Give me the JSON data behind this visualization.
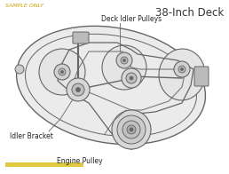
{
  "title": "38-Inch Deck",
  "watermark": "SAMPLE ONLY",
  "labels": {
    "engine_pulley": "Engine Pulley",
    "idler_bracket": "Idler Bracket",
    "deck_idler_pulleys": "Deck Idler Pulleys"
  },
  "bg_color": "#f2f2f2",
  "border_color": "#bbbbbb",
  "line_color": "#666666",
  "fill_light": "#e0e0e0",
  "fill_mid": "#c8c8c8",
  "title_fontsize": 8.5,
  "label_fontsize": 5.5,
  "watermark_color": "#c8a000",
  "watermark_fontsize": 4.5
}
